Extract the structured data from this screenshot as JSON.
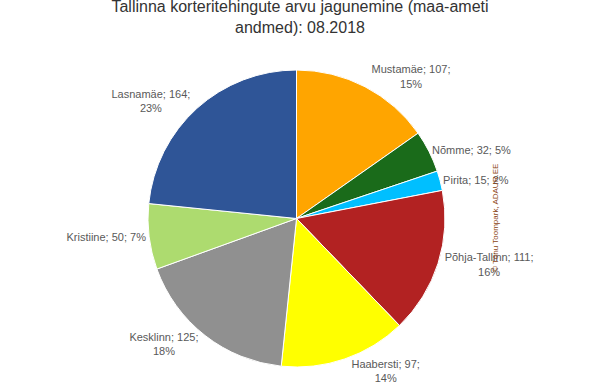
{
  "chart_data": {
    "type": "pie",
    "title": "Tallinna korteritehingute arvu jagunemine (maa-ameti\nandmed): 08.2018",
    "categories": [
      "Mustamäe",
      "Nõmme",
      "Pirita",
      "Põhja-Tallinn",
      "Haabersti",
      "Kesklinn",
      "Kristiine",
      "Lasnamäe"
    ],
    "values": [
      107,
      32,
      15,
      111,
      97,
      125,
      50,
      164
    ],
    "value_labels": [
      "Mustamäe; 107;\n15%",
      "Nõmme; 32; 5%",
      "Pirita; 15; 2%",
      "Põhja-Tallinn; 111;\n16%",
      "Haabersti; 97;\n14%",
      "Kesklinn; 125;\n18%",
      "Kristiine; 50; 7%",
      "Lasnamäe; 164;\n23%"
    ],
    "colors": [
      "#FFA500",
      "#1A6B1A",
      "#00BFFF",
      "#B22222",
      "#FFFF00",
      "#909090",
      "#ADDB6F",
      "#2F5597"
    ],
    "data_labels": true,
    "annotations": [
      "© Tõnu Toompark, ADAUR.EE"
    ]
  }
}
